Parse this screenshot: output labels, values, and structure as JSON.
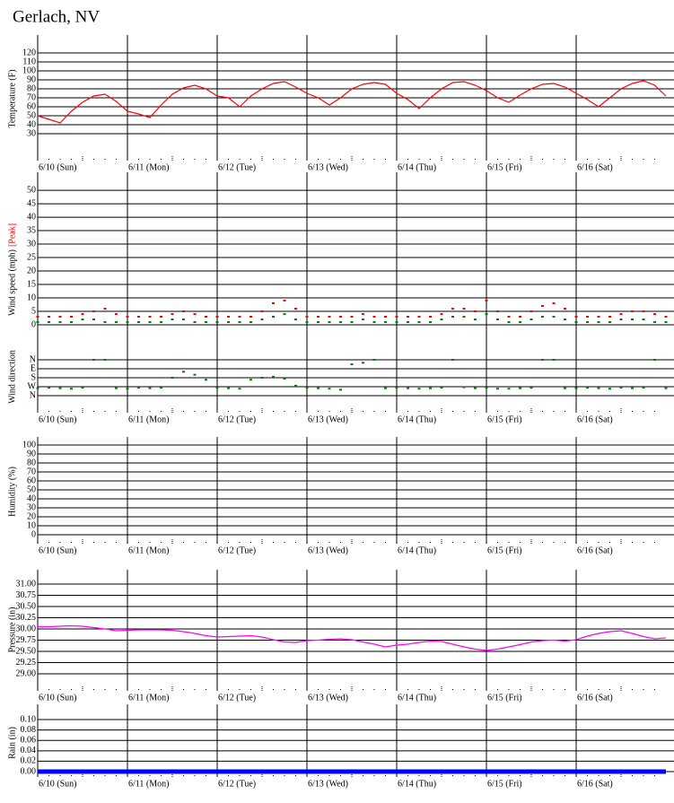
{
  "title": "Gerlach, NV",
  "chart_data": [
    {
      "type": "line",
      "ylabel": "Temperature (F)",
      "x": [
        0,
        3,
        6,
        9,
        12,
        15,
        18,
        21,
        24,
        27,
        30,
        33,
        36,
        39,
        42,
        45,
        48,
        51,
        54,
        57,
        60,
        63,
        66,
        69,
        72,
        75,
        78,
        81,
        84,
        87,
        90,
        93,
        96,
        99,
        102,
        105,
        108,
        111,
        114,
        117,
        120,
        123,
        126,
        129,
        132,
        135,
        138,
        141,
        144,
        147,
        150,
        153,
        156,
        159,
        162,
        165,
        168
      ],
      "series": [
        {
          "color": "#ff0000",
          "values": [
            50,
            46,
            42,
            55,
            65,
            72,
            74,
            66,
            55,
            52,
            48,
            62,
            74,
            81,
            84,
            80,
            72,
            70,
            60,
            72,
            80,
            86,
            88,
            82,
            75,
            70,
            62,
            70,
            80,
            85,
            87,
            85,
            75,
            68,
            58,
            70,
            80,
            87,
            88,
            84,
            78,
            70,
            65,
            73,
            80,
            85,
            86,
            82,
            75,
            68,
            60,
            70,
            80,
            86,
            89,
            84,
            72
          ]
        }
      ],
      "ylim": [
        0,
        140
      ],
      "yticks": [
        30,
        40,
        50,
        60,
        70,
        80,
        90,
        100,
        110,
        120
      ],
      "xlim": [
        0,
        168
      ],
      "xticks": [
        {
          "value": 0,
          "label": "6/10 (Sun)"
        },
        {
          "value": 24,
          "label": "6/11 (Mon)"
        },
        {
          "value": 48,
          "label": "6/12 (Tue)"
        },
        {
          "value": 72,
          "label": "6/13 (Wed)"
        },
        {
          "value": 96,
          "label": "6/14 (Thu)"
        },
        {
          "value": 120,
          "label": "6/15 (Fri)"
        },
        {
          "value": 144,
          "label": "6/16 (Sat)"
        }
      ]
    },
    {
      "type": "scatter",
      "ylabel": "Wind speed (mph)",
      "x": [
        0,
        3,
        6,
        9,
        12,
        15,
        18,
        21,
        24,
        27,
        30,
        33,
        36,
        39,
        42,
        45,
        48,
        51,
        54,
        57,
        60,
        63,
        66,
        69,
        72,
        75,
        78,
        81,
        84,
        87,
        90,
        93,
        96,
        99,
        102,
        105,
        108,
        111,
        114,
        117,
        120,
        123,
        126,
        129,
        132,
        135,
        138,
        141,
        144,
        147,
        150,
        153,
        156,
        159,
        162,
        165,
        168
      ],
      "series": [
        {
          "name": "[Peak]",
          "color": "#ff0000",
          "values": [
            3,
            3,
            3,
            3,
            4,
            5,
            6,
            4,
            3,
            3,
            3,
            3,
            4,
            5,
            4,
            3,
            3,
            3,
            3,
            3,
            5,
            8,
            9,
            6,
            3,
            3,
            3,
            3,
            3,
            4,
            3,
            3,
            3,
            3,
            3,
            3,
            4,
            6,
            6,
            5,
            9,
            5,
            3,
            3,
            5,
            7,
            8,
            6,
            3,
            3,
            3,
            3,
            4,
            5,
            5,
            4,
            3
          ]
        },
        {
          "color": "#008000",
          "values": [
            1,
            1,
            1,
            1,
            2,
            2,
            1,
            1,
            1,
            1,
            1,
            1,
            2,
            2,
            1,
            1,
            1,
            1,
            1,
            1,
            2,
            3,
            4,
            2,
            1,
            1,
            1,
            1,
            1,
            2,
            1,
            1,
            1,
            1,
            1,
            1,
            2,
            3,
            3,
            2,
            4,
            2,
            1,
            1,
            2,
            3,
            3,
            2,
            1,
            1,
            1,
            1,
            2,
            2,
            2,
            1,
            1
          ]
        }
      ],
      "ylim": [
        -1,
        56.7
      ],
      "yticks": [
        0,
        5,
        10,
        15,
        20,
        25,
        30,
        35,
        40,
        45,
        50
      ],
      "xlim": [
        0,
        168
      ]
    },
    {
      "type": "scatter",
      "ylabel": "Wind direction",
      "y_inverted": true,
      "x": [
        0,
        3,
        6,
        9,
        12,
        15,
        18,
        21,
        24,
        27,
        30,
        33,
        36,
        39,
        42,
        45,
        48,
        51,
        54,
        57,
        60,
        63,
        66,
        69,
        72,
        75,
        78,
        81,
        84,
        87,
        90,
        93,
        96,
        99,
        102,
        105,
        108,
        111,
        114,
        117,
        120,
        123,
        126,
        129,
        132,
        135,
        138,
        141,
        144,
        147,
        150,
        153,
        156,
        159,
        162,
        165,
        168
      ],
      "series": [
        {
          "color": "#008000",
          "values": [
            285,
            280,
            285,
            290,
            280,
            0,
            0,
            285,
            290,
            280,
            285,
            280,
            180,
            120,
            150,
            200,
            280,
            285,
            290,
            200,
            180,
            170,
            190,
            260,
            280,
            285,
            290,
            300,
            45,
            30,
            0,
            285,
            280,
            285,
            290,
            285,
            280,
            0,
            275,
            285,
            280,
            290,
            290,
            285,
            280,
            0,
            0,
            285,
            285,
            280,
            285,
            290,
            280,
            285,
            280,
            0,
            285
          ]
        }
      ],
      "ylim": [
        -324,
        531
      ],
      "yticks": [
        {
          "value": 0,
          "label": "N"
        },
        {
          "value": 90,
          "label": "E"
        },
        {
          "value": 180,
          "label": "S"
        },
        {
          "value": 270,
          "label": "W"
        },
        {
          "value": 360,
          "label": "N"
        }
      ],
      "xlim": [
        0,
        168
      ],
      "xticks": [
        {
          "value": 0,
          "label": "6/10 (Sun)"
        },
        {
          "value": 24,
          "label": "6/11 (Mon)"
        },
        {
          "value": 48,
          "label": "6/12 (Tue)"
        },
        {
          "value": 72,
          "label": "6/13 (Wed)"
        },
        {
          "value": 96,
          "label": "6/14 (Thu)"
        },
        {
          "value": 120,
          "label": "6/15 (Fri)"
        },
        {
          "value": 144,
          "label": "6/16 (Sat)"
        }
      ]
    },
    {
      "type": "line",
      "ylabel": "Humidity (%)",
      "series": [],
      "ylim": [
        -10,
        109
      ],
      "yticks": [
        0,
        10,
        20,
        30,
        40,
        50,
        60,
        70,
        80,
        90,
        100
      ],
      "xlim": [
        0,
        168
      ],
      "xticks": [
        {
          "value": 0,
          "label": "6/10 (Sun)"
        },
        {
          "value": 24,
          "label": "6/11 (Mon)"
        },
        {
          "value": 48,
          "label": "6/12 (Tue)"
        },
        {
          "value": 72,
          "label": "6/13 (Wed)"
        },
        {
          "value": 96,
          "label": "6/14 (Thu)"
        },
        {
          "value": 120,
          "label": "6/15 (Fri)"
        },
        {
          "value": 144,
          "label": "6/16 (Sat)"
        }
      ]
    },
    {
      "type": "line",
      "ylabel": "Pressure (in)",
      "x": [
        0,
        3,
        6,
        9,
        12,
        15,
        18,
        21,
        24,
        27,
        30,
        33,
        36,
        39,
        42,
        45,
        48,
        51,
        54,
        57,
        60,
        63,
        66,
        69,
        72,
        75,
        78,
        81,
        84,
        87,
        90,
        93,
        96,
        99,
        102,
        105,
        108,
        111,
        114,
        117,
        120,
        123,
        126,
        129,
        132,
        135,
        138,
        141,
        144,
        147,
        150,
        153,
        156,
        159,
        162,
        165,
        168
      ],
      "series": [
        {
          "color": "#ff00ff",
          "values": [
            30.05,
            30.05,
            30.06,
            30.07,
            30.06,
            30.03,
            30.0,
            29.96,
            29.97,
            29.98,
            29.98,
            29.98,
            29.97,
            29.94,
            29.9,
            29.85,
            29.82,
            29.83,
            29.84,
            29.85,
            29.82,
            29.76,
            29.71,
            29.7,
            29.74,
            29.75,
            29.77,
            29.78,
            29.76,
            29.71,
            29.66,
            29.6,
            29.64,
            29.66,
            29.7,
            29.73,
            29.72,
            29.66,
            29.6,
            29.55,
            29.52,
            29.55,
            29.6,
            29.65,
            29.71,
            29.74,
            29.75,
            29.73,
            29.76,
            29.84,
            29.9,
            29.94,
            29.96,
            29.9,
            29.83,
            29.78,
            29.8
          ]
        }
      ],
      "ylim": [
        28.62,
        31.32
      ],
      "yticks": [
        {
          "value": 29,
          "label": "29.00"
        },
        {
          "value": 29.25,
          "label": "29.25"
        },
        {
          "value": 29.5,
          "label": "29.50"
        },
        {
          "value": 29.75,
          "label": "29.75"
        },
        {
          "value": 30,
          "label": "30.00"
        },
        {
          "value": 30.25,
          "label": "30.25"
        },
        {
          "value": 30.5,
          "label": "30.50"
        },
        {
          "value": 30.75,
          "label": "30.75"
        },
        {
          "value": 31,
          "label": "31.00"
        }
      ],
      "xlim": [
        0,
        168
      ],
      "xticks": [
        {
          "value": 0,
          "label": "6/10 (Sun)"
        },
        {
          "value": 24,
          "label": "6/11 (Mon)"
        },
        {
          "value": 48,
          "label": "6/12 (Tue)"
        },
        {
          "value": 72,
          "label": "6/13 (Wed)"
        },
        {
          "value": 96,
          "label": "6/14 (Thu)"
        },
        {
          "value": 120,
          "label": "6/15 (Fri)"
        },
        {
          "value": 144,
          "label": "6/16 (Sat)"
        }
      ]
    },
    {
      "type": "line",
      "ylabel": "Rain (in)",
      "x": [
        0,
        168
      ],
      "series": [
        {
          "color": "#0000ff",
          "width": 5,
          "values": [
            0,
            0
          ]
        }
      ],
      "ylim": [
        -0.0103,
        0.1293
      ],
      "yticks": [
        {
          "value": 0,
          "label": "0.00"
        },
        {
          "value": 0.02,
          "label": "0.02"
        },
        {
          "value": 0.04,
          "label": "0.04"
        },
        {
          "value": 0.06,
          "label": "0.06"
        },
        {
          "value": 0.08,
          "label": "0.08"
        },
        {
          "value": 0.1,
          "label": "0.10"
        }
      ],
      "xlim": [
        0,
        168
      ],
      "xticks": [
        {
          "value": 0,
          "label": "6/10 (Sun)"
        },
        {
          "value": 24,
          "label": "6/11 (Mon)"
        },
        {
          "value": 48,
          "label": "6/12 (Tue)"
        },
        {
          "value": 72,
          "label": "6/13 (Wed)"
        },
        {
          "value": 96,
          "label": "6/14 (Thu)"
        },
        {
          "value": 120,
          "label": "6/15 (Fri)"
        },
        {
          "value": 144,
          "label": "6/16 (Sat)"
        }
      ]
    }
  ]
}
